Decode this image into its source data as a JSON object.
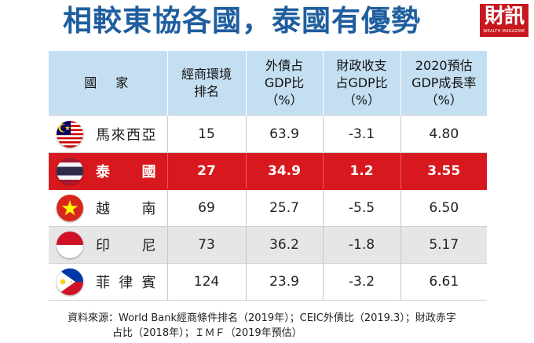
{
  "title": "相較東協各國，泰國有優勢",
  "logo": {
    "text": "財訊",
    "subtext": "WEALTH MAGAZINE",
    "color": "#c8171e"
  },
  "table": {
    "headers": [
      [
        "國　家"
      ],
      [
        "經商環境",
        "排名"
      ],
      [
        "外債占",
        "GDP比",
        "（%）"
      ],
      [
        "財政收支",
        "占GDP比",
        "（%）"
      ],
      [
        "2020預估",
        "GDP成長率",
        "（%）"
      ]
    ],
    "rows": [
      {
        "country": "馬來西亞",
        "flag": "malaysia-flag-icon",
        "rank": "15",
        "debt": "63.9",
        "fiscal": "-3.1",
        "growth": "4.80"
      },
      {
        "country": "泰國",
        "flag": "thailand-flag-icon",
        "rank": "27",
        "debt": "34.9",
        "fiscal": "1.2",
        "growth": "3.55"
      },
      {
        "country": "越南",
        "flag": "vietnam-flag-icon",
        "rank": "69",
        "debt": "25.7",
        "fiscal": "-5.5",
        "growth": "6.50"
      },
      {
        "country": "印尼",
        "flag": "indonesia-flag-icon",
        "rank": "73",
        "debt": "36.2",
        "fiscal": "-1.8",
        "growth": "5.17"
      },
      {
        "country": "菲律賓",
        "flag": "philippines-flag-icon",
        "rank": "124",
        "debt": "23.9",
        "fiscal": "-3.2",
        "growth": "6.61"
      }
    ],
    "highlight_color": "#d7191f",
    "header_color": "#c5dff2"
  },
  "source": {
    "line1": "資料來源：World Bank經商條件排名（2019年）；CEIC外債比（2019.3）；財政赤字",
    "line2": "占比（2018年）；ＩＭＦ（2019年預估）"
  },
  "colors": {
    "title": "#1f5e9e"
  }
}
